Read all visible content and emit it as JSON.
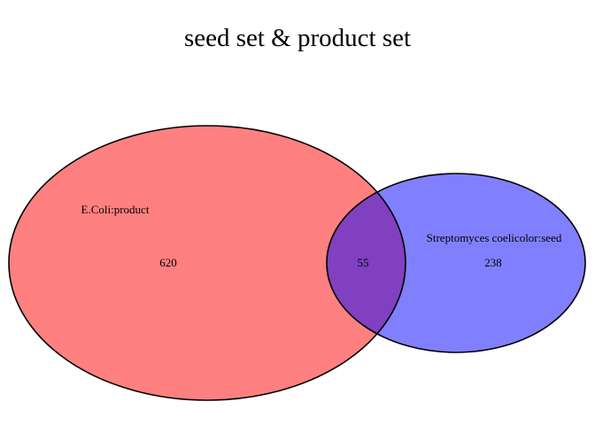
{
  "title": "seed set & product set",
  "sets": [
    {
      "name": "E.Coli:product",
      "only_count": "620",
      "fill_color": "#ff8080"
    },
    {
      "name": "Streptomyces coelicolor:seed",
      "only_count": "238",
      "fill_color": "#8080ff"
    }
  ],
  "intersection": {
    "count": "55",
    "fill_color": "#8040c0"
  },
  "outline_color": "#000000"
}
